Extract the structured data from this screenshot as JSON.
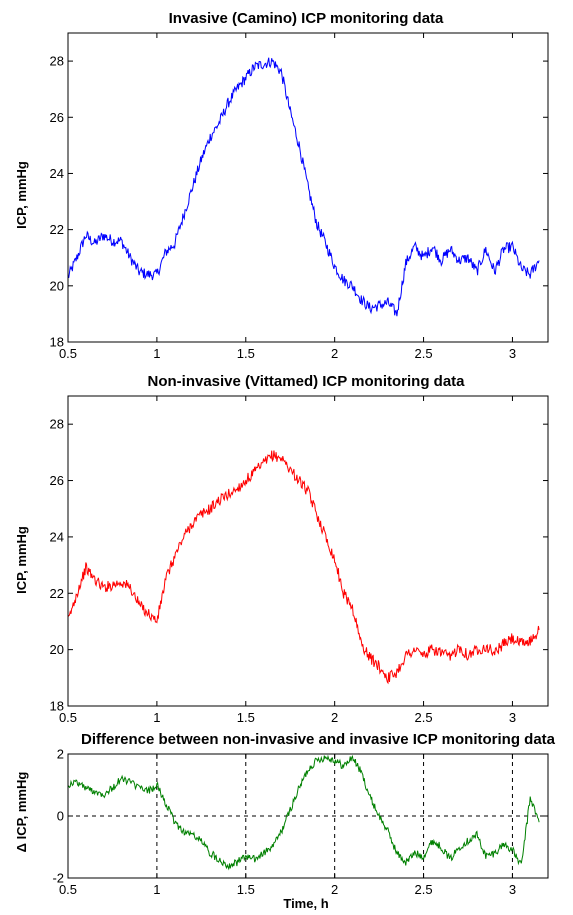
{
  "chart_data": [
    {
      "type": "line",
      "title": "Invasive (Camino) ICP monitoring data",
      "ylabel": "ICP, mmHg",
      "xlabel": "",
      "xlim": [
        0.5,
        3.2
      ],
      "ylim": [
        18,
        29
      ],
      "xticks": [
        "0.5",
        "1",
        "1.5",
        "2",
        "2.5",
        "3"
      ],
      "yticks": [
        "18",
        "20",
        "22",
        "24",
        "26",
        "28"
      ],
      "grid": false,
      "color": "#0000ff",
      "series": [
        {
          "x": [
            0.5,
            0.55,
            0.6,
            0.65,
            0.7,
            0.75,
            0.8,
            0.85,
            0.9,
            0.95,
            1.0,
            1.05,
            1.1,
            1.15,
            1.2,
            1.25,
            1.3,
            1.35,
            1.4,
            1.45,
            1.5,
            1.55,
            1.6,
            1.65,
            1.7,
            1.75,
            1.8,
            1.85,
            1.9,
            1.95,
            2.0,
            2.05,
            2.1,
            2.15,
            2.2,
            2.25,
            2.3,
            2.35,
            2.4,
            2.45,
            2.5,
            2.55,
            2.6,
            2.65,
            2.7,
            2.75,
            2.8,
            2.85,
            2.9,
            2.95,
            3.0,
            3.05,
            3.1,
            3.15
          ],
          "y": [
            20.3,
            21.0,
            21.8,
            21.5,
            21.8,
            21.6,
            21.6,
            21.0,
            20.5,
            20.4,
            20.4,
            21.2,
            21.5,
            22.5,
            23.5,
            24.5,
            25.3,
            25.8,
            26.5,
            27.0,
            27.4,
            27.8,
            27.9,
            28.0,
            27.6,
            26.2,
            25.0,
            23.5,
            22.2,
            21.5,
            20.7,
            20.2,
            20.0,
            19.5,
            19.2,
            19.3,
            19.4,
            19.0,
            20.8,
            21.4,
            21.0,
            21.4,
            20.9,
            21.3,
            20.9,
            21.0,
            20.5,
            21.3,
            20.5,
            21.3,
            21.4,
            20.6,
            20.4,
            20.9
          ]
        }
      ]
    },
    {
      "type": "line",
      "title": "Non-invasive (Vittamed) ICP monitoring data",
      "ylabel": "ICP, mmHg",
      "xlabel": "",
      "xlim": [
        0.5,
        3.2
      ],
      "ylim": [
        18,
        29
      ],
      "xticks": [
        "0.5",
        "1",
        "1.5",
        "2",
        "2.5",
        "3"
      ],
      "yticks": [
        "18",
        "20",
        "22",
        "24",
        "26",
        "28"
      ],
      "grid": false,
      "color": "#ff0000",
      "series": [
        {
          "x": [
            0.5,
            0.55,
            0.6,
            0.65,
            0.7,
            0.75,
            0.8,
            0.85,
            0.9,
            0.95,
            1.0,
            1.05,
            1.1,
            1.15,
            1.2,
            1.25,
            1.3,
            1.35,
            1.4,
            1.45,
            1.5,
            1.55,
            1.6,
            1.65,
            1.7,
            1.75,
            1.8,
            1.85,
            1.9,
            1.95,
            2.0,
            2.05,
            2.1,
            2.15,
            2.2,
            2.25,
            2.3,
            2.35,
            2.4,
            2.45,
            2.5,
            2.55,
            2.6,
            2.65,
            2.7,
            2.75,
            2.8,
            2.85,
            2.9,
            2.95,
            3.0,
            3.05,
            3.1,
            3.15
          ],
          "y": [
            21.0,
            22.0,
            22.9,
            22.5,
            22.2,
            22.3,
            22.4,
            22.2,
            21.6,
            21.3,
            21.0,
            22.5,
            23.3,
            24.0,
            24.5,
            24.8,
            25.0,
            25.3,
            25.5,
            25.7,
            26.0,
            26.3,
            26.6,
            26.9,
            26.8,
            26.4,
            26.0,
            25.6,
            24.8,
            24.0,
            23.2,
            22.0,
            21.5,
            20.2,
            19.7,
            19.4,
            19.0,
            19.2,
            19.8,
            20.0,
            19.8,
            20.0,
            19.9,
            19.7,
            20.1,
            19.8,
            20.0,
            20.1,
            19.9,
            20.2,
            20.4,
            20.2,
            20.3,
            20.7
          ]
        }
      ]
    },
    {
      "type": "line",
      "title": "Difference between non-invasive and invasive ICP monitoring data",
      "ylabel": "Δ ICP, mmHg",
      "xlabel": "Time, h",
      "xlim": [
        0.5,
        3.2
      ],
      "ylim": [
        -2,
        2
      ],
      "xticks": [
        "0.5",
        "1",
        "1.5",
        "2",
        "2.5",
        "3"
      ],
      "yticks": [
        "-2",
        "0",
        "2"
      ],
      "grid": true,
      "color": "#008000",
      "series": [
        {
          "x": [
            0.5,
            0.55,
            0.6,
            0.65,
            0.7,
            0.75,
            0.8,
            0.85,
            0.9,
            0.95,
            1.0,
            1.05,
            1.1,
            1.15,
            1.2,
            1.25,
            1.3,
            1.35,
            1.4,
            1.45,
            1.5,
            1.55,
            1.6,
            1.65,
            1.7,
            1.75,
            1.8,
            1.85,
            1.9,
            1.95,
            2.0,
            2.05,
            2.1,
            2.15,
            2.2,
            2.25,
            2.3,
            2.35,
            2.4,
            2.45,
            2.5,
            2.55,
            2.6,
            2.65,
            2.7,
            2.75,
            2.8,
            2.85,
            2.9,
            2.95,
            3.0,
            3.05,
            3.1,
            3.15
          ],
          "y": [
            1.0,
            1.1,
            0.9,
            0.8,
            0.7,
            0.9,
            1.2,
            1.1,
            0.9,
            0.8,
            1.0,
            0.4,
            -0.2,
            -0.5,
            -0.6,
            -0.8,
            -1.2,
            -1.4,
            -1.6,
            -1.5,
            -1.3,
            -1.4,
            -1.2,
            -1.0,
            -0.5,
            0.2,
            0.9,
            1.5,
            1.8,
            1.9,
            1.8,
            1.6,
            1.9,
            1.4,
            0.6,
            0.0,
            -0.5,
            -1.2,
            -1.5,
            -1.2,
            -1.3,
            -0.8,
            -1.0,
            -1.4,
            -1.0,
            -0.8,
            -0.6,
            -1.3,
            -1.2,
            -0.9,
            -1.1,
            -1.6,
            0.6,
            -0.2
          ]
        }
      ]
    }
  ]
}
